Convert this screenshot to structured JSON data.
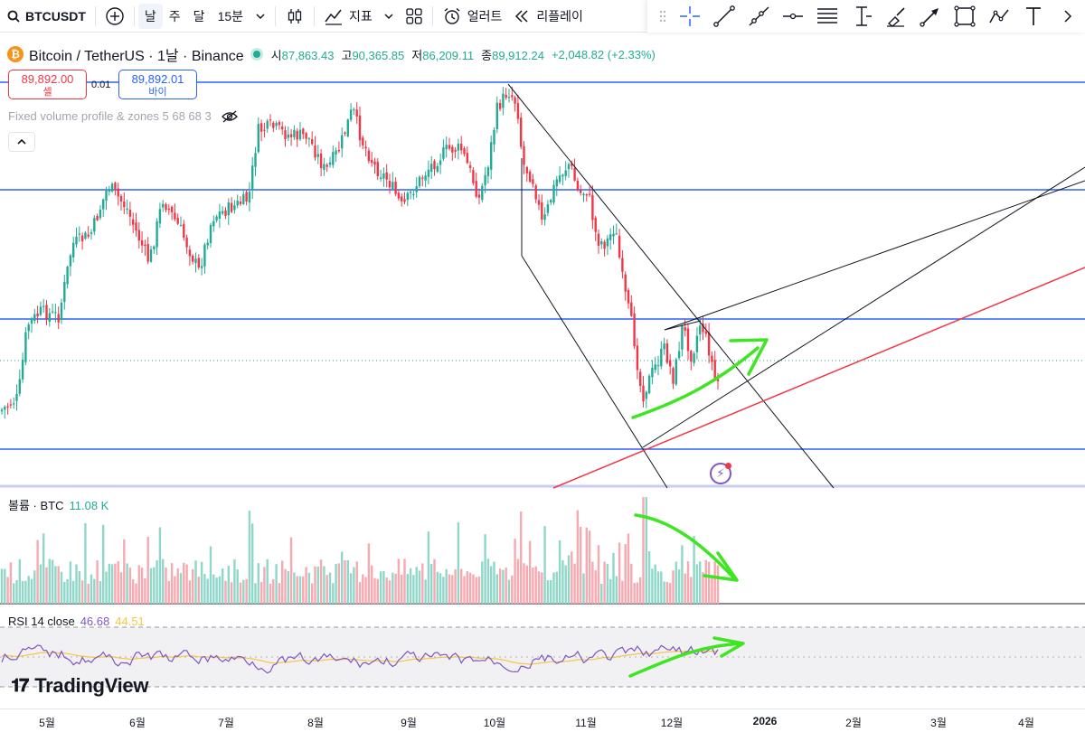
{
  "toolbar": {
    "symbol": "BTCUSDT",
    "timeframes": [
      "날",
      "주",
      "달",
      "15분"
    ],
    "indicators_label": "지표",
    "alert_label": "얼러트",
    "replay_label": "리플레이"
  },
  "legend": {
    "title": "Bitcoin / TetherUS · 1날 · Binance",
    "coin_glyph": "₿",
    "open_label": "시",
    "open": "87,863.43",
    "high_label": "고",
    "high": "90,365.85",
    "low_label": "저",
    "low": "86,209.11",
    "close_label": "종",
    "close": "89,912.24",
    "change": "+2,048.82 (+2.33%)"
  },
  "trade": {
    "sell_price": "89,892.00",
    "sell_label": "셀",
    "buy_price": "89,892.01",
    "buy_label": "바이",
    "spread": "0.01"
  },
  "indicator_name": "Fixed volume profile & zones 5 68 68 3",
  "volume": {
    "label": "볼륨 · BTC",
    "value": "11.08 K"
  },
  "rsi": {
    "label": "RSI 14 close",
    "value": "46.68",
    "ma": "44.51"
  },
  "brand": "TradingView",
  "x_axis": [
    {
      "label": "5월",
      "year": false
    },
    {
      "label": "6월",
      "year": false
    },
    {
      "label": "7월",
      "year": false
    },
    {
      "label": "8월",
      "year": false
    },
    {
      "label": "9월",
      "year": false
    },
    {
      "label": "10월",
      "year": false
    },
    {
      "label": "11월",
      "year": false
    },
    {
      "label": "12월",
      "year": false
    },
    {
      "label": "2026",
      "year": true
    },
    {
      "label": "2월",
      "year": false
    },
    {
      "label": "3월",
      "year": false
    },
    {
      "label": "4월",
      "year": false
    }
  ],
  "colors": {
    "up": "#22ab94",
    "down": "#f23645",
    "hline": "#2962ff",
    "trend": "#131722",
    "support": "#f23645",
    "annotation": "#3ee521",
    "rsi": "#7e57c2",
    "rsi_ma": "#f7c543"
  },
  "chart_data": {
    "type": "candlestick",
    "series": [
      {
        "name": "Bitcoin / TetherUS",
        "points": "daily OHLC candles, approx. April 2025 – mid-December 2025"
      },
      {
        "name": "볼륨 · BTC",
        "last": "11.08 K"
      },
      {
        "name": "RSI 14 close",
        "last": 46.68,
        "ma": 44.51
      }
    ],
    "x_range": [
      "2025-04",
      "2026-04"
    ]
  }
}
